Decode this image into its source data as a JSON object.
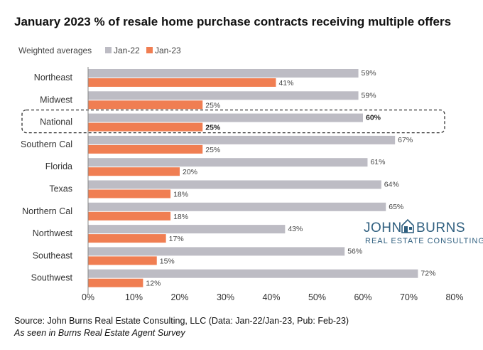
{
  "title": "January 2023 % of resale home purchase contracts receiving multiple offers",
  "source_line": "Source: John Burns Real Estate Consulting, LLC (Data: Jan-22/Jan-23, Pub: Feb-23)",
  "note_line": "As seen in Burns Real Estate Agent Survey",
  "logo": {
    "name_left": "JOHN",
    "name_right": "BURNS",
    "tagline": "REAL ESTATE CONSULTING",
    "icon": "house-icon"
  },
  "colors": {
    "jan22": "#bdbcc4",
    "jan23": "#f07e52",
    "highlight_border": "#333333",
    "axis": "#888888"
  },
  "chart_data": {
    "type": "bar",
    "orientation": "horizontal",
    "title": "January 2023 % of resale home purchase contracts receiving multiple offers",
    "legend_title": "Weighted averages",
    "legend_position": "top-left",
    "categories": [
      "Northeast",
      "Midwest",
      "National",
      "Southern Cal",
      "Florida",
      "Texas",
      "Northern Cal",
      "Northwest",
      "Southeast",
      "Southwest"
    ],
    "series": [
      {
        "name": "Jan-22",
        "values": [
          59,
          59,
          60,
          67,
          61,
          64,
          65,
          43,
          56,
          72
        ]
      },
      {
        "name": "Jan-23",
        "values": [
          41,
          25,
          25,
          25,
          20,
          18,
          18,
          17,
          15,
          12
        ]
      }
    ],
    "value_labels": {
      "Jan-22": [
        "59%",
        "59%",
        "60%",
        "67%",
        "61%",
        "64%",
        "65%",
        "43%",
        "56%",
        "72%"
      ],
      "Jan-23": [
        "41%",
        "25%",
        "25%",
        "25%",
        "20%",
        "18%",
        "18%",
        "17%",
        "15%",
        "12%"
      ]
    },
    "highlighted_category": "National",
    "xlim": [
      0,
      80
    ],
    "x_ticks": [
      0,
      10,
      20,
      30,
      40,
      50,
      60,
      70,
      80
    ],
    "x_tick_labels": [
      "0%",
      "10%",
      "20%",
      "30%",
      "40%",
      "50%",
      "60%",
      "70%",
      "80%"
    ],
    "grid": false
  }
}
